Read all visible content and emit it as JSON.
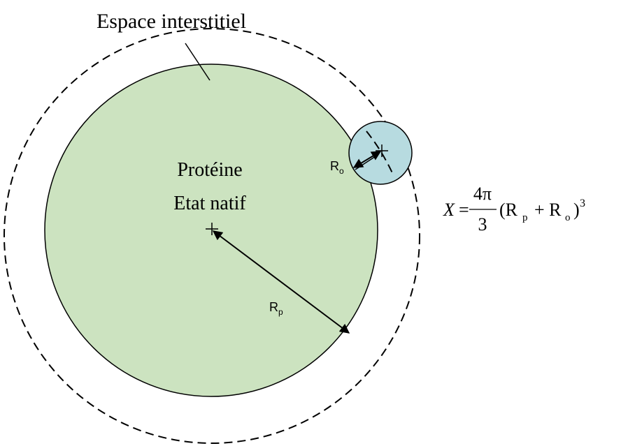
{
  "title": "Espace interstitiel",
  "protein": {
    "line1": "Protéine",
    "line2": "Etat natif"
  },
  "radius_protein": {
    "symbol": "R",
    "subscript": "p"
  },
  "radius_other": {
    "symbol": "R",
    "subscript": "o"
  },
  "formula": {
    "lhs": "X",
    "equals": "=",
    "numerator": "4π",
    "denominator": "3",
    "open": "(R",
    "sub1": "p",
    "plus": "+ R",
    "sub2": "o",
    "close": ")",
    "power": "3"
  }
}
